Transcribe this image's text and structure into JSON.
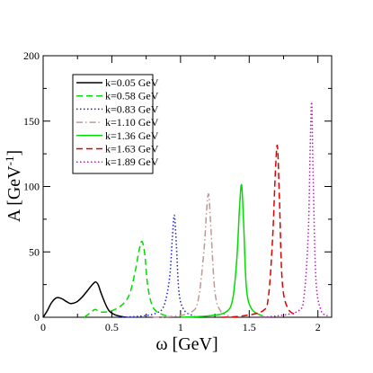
{
  "chart_data": {
    "type": "line",
    "title": "",
    "xlabel": "ω [GeV]",
    "ylabel_main": "A [GeV",
    "ylabel_sup": "-1",
    "ylabel_close": "]",
    "xlim": [
      0,
      2.1
    ],
    "ylim": [
      0,
      200
    ],
    "xticks": [
      0,
      0.5,
      1,
      1.5,
      2
    ],
    "xtick_labels": [
      "0",
      "0.5",
      "1",
      "1.5",
      "2"
    ],
    "yticks": [
      0,
      50,
      100,
      150,
      200
    ],
    "ytick_labels": [
      "0",
      "50",
      "100",
      "150",
      "200"
    ],
    "grid": false,
    "legend_position": "top-left",
    "series": [
      {
        "name": "k=0.05 GeV",
        "color": "#000000",
        "dash": "solid",
        "x": [
          0,
          0.03,
          0.06,
          0.09,
          0.11,
          0.14,
          0.17,
          0.2,
          0.24,
          0.28,
          0.32,
          0.35,
          0.38,
          0.4,
          0.42,
          0.45,
          0.48,
          0.52,
          0.56,
          0.6
        ],
        "y": [
          0,
          5,
          11,
          14.5,
          15,
          14,
          12,
          10.5,
          11.5,
          15,
          20,
          24,
          27,
          25,
          19,
          11,
          5,
          2,
          0.8,
          0
        ]
      },
      {
        "name": "k=0.58 GeV",
        "color": "#00dd00",
        "dash": "dashed",
        "x": [
          0.3,
          0.35,
          0.38,
          0.42,
          0.5,
          0.58,
          0.63,
          0.67,
          0.7,
          0.72,
          0.74,
          0.76,
          0.79,
          0.83,
          0.9
        ],
        "y": [
          0,
          4,
          6,
          4,
          5,
          10,
          18,
          35,
          52,
          58,
          48,
          25,
          10,
          4,
          1
        ]
      },
      {
        "name": "k=0.83 GeV",
        "color": "#2222cc",
        "dash": "dotted",
        "x": [
          0.55,
          0.7,
          0.82,
          0.88,
          0.92,
          0.94,
          0.955,
          0.97,
          0.99,
          1.03,
          1.1
        ],
        "y": [
          0,
          0.8,
          3,
          9,
          30,
          60,
          78,
          55,
          18,
          5,
          1
        ]
      },
      {
        "name": "k=1.10 GeV",
        "color": "#bb9999",
        "dash": "dashdot",
        "x": [
          0.8,
          0.95,
          1.08,
          1.13,
          1.17,
          1.19,
          1.205,
          1.22,
          1.25,
          1.29,
          1.35
        ],
        "y": [
          0,
          0.8,
          4,
          14,
          50,
          82,
          94,
          70,
          20,
          5,
          1
        ]
      },
      {
        "name": "k=1.36 GeV",
        "color": "#00dd00",
        "dash": "solid",
        "x": [
          1.0,
          1.2,
          1.33,
          1.38,
          1.41,
          1.43,
          1.445,
          1.46,
          1.48,
          1.52,
          1.6
        ],
        "y": [
          0,
          1,
          4,
          14,
          45,
          85,
          101,
          70,
          22,
          6,
          1
        ]
      },
      {
        "name": "k=1.63 GeV",
        "color": "#dd0000",
        "dash": "dashed",
        "x": [
          1.3,
          1.45,
          1.6,
          1.64,
          1.67,
          1.69,
          1.705,
          1.72,
          1.74,
          1.78,
          1.85
        ],
        "y": [
          0,
          1,
          5,
          16,
          60,
          110,
          131,
          90,
          28,
          7,
          1.5
        ]
      },
      {
        "name": "k=1.89 GeV",
        "color": "#dd00dd",
        "dash": "dotted",
        "x": [
          1.55,
          1.7,
          1.86,
          1.9,
          1.93,
          1.945,
          1.955,
          1.965,
          1.985,
          2.02,
          2.07
        ],
        "y": [
          0,
          1,
          5,
          17,
          65,
          135,
          164,
          110,
          30,
          6,
          1
        ]
      }
    ]
  }
}
